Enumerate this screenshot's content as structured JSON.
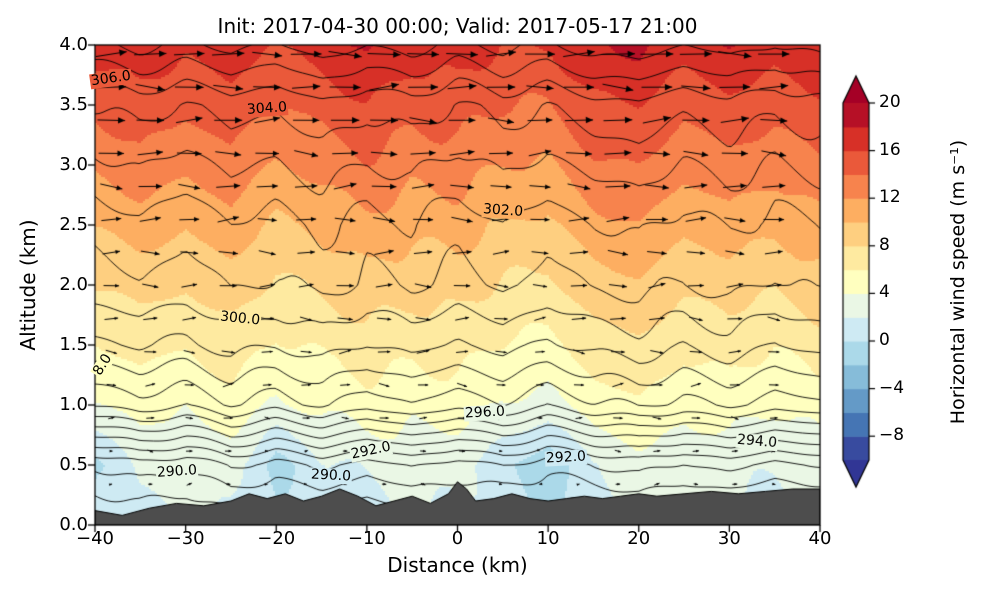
{
  "chart_data": {
    "type": "heatmap",
    "subtype": "vertical cross-section: filled wind-speed contours, potential-temperature contour lines, wind vectors, terrain silhouette",
    "title": "Init: 2017-04-30 00:00; Valid: 2017-05-17 21:00",
    "xlabel": "Distance (km)",
    "ylabel": "Altitude (km)",
    "xlim": [
      -40,
      40
    ],
    "ylim": [
      0.0,
      4.0
    ],
    "x_ticks": {
      "values": [
        -40,
        -30,
        -20,
        -10,
        0,
        10,
        20,
        30,
        40
      ],
      "labels": [
        "−40",
        "−30",
        "−20",
        "−10",
        "0",
        "10",
        "20",
        "30",
        "40"
      ]
    },
    "y_ticks": {
      "values": [
        0,
        0.5,
        1,
        1.5,
        2,
        2.5,
        3,
        3.5,
        4
      ],
      "labels": [
        "0.0",
        "0.5",
        "1.0",
        "1.5",
        "2.0",
        "2.5",
        "3.0",
        "3.5",
        "4.0"
      ]
    },
    "grid_x": [
      -40,
      -35,
      -30,
      -25,
      -20,
      -15,
      -10,
      -5,
      0,
      5,
      10,
      15,
      20,
      25,
      30,
      35,
      40
    ],
    "grid_z": [
      0,
      0.5,
      1,
      1.5,
      2,
      2.5,
      3,
      3.5,
      4
    ],
    "wind_speed_grid": [
      [
        1.8,
        1.2,
        2.0,
        1.5,
        0.5,
        1.5,
        1.0,
        1.8,
        1.2,
        2.0,
        -0.2,
        1.4,
        2.0,
        1.6,
        1.8,
        1.3,
        1.9
      ],
      [
        -0.5,
        2.8,
        3.2,
        2.5,
        -0.8,
        1.8,
        2.6,
        3.0,
        2.2,
        0.8,
        -1.4,
        2.0,
        3.2,
        2.6,
        3.0,
        2.4,
        2.8
      ],
      [
        4.2,
        4.8,
        4.0,
        5.0,
        3.8,
        4.6,
        5.2,
        4.4,
        4.8,
        4.0,
        3.6,
        5.0,
        5.5,
        4.5,
        5.1,
        4.3,
        4.9
      ],
      [
        6.2,
        6.8,
        6.0,
        7.0,
        5.8,
        6.6,
        7.2,
        6.4,
        6.8,
        6.0,
        5.6,
        7.0,
        7.5,
        6.5,
        7.1,
        6.3,
        6.9
      ],
      [
        8.2,
        8.8,
        8.0,
        9.0,
        7.8,
        8.6,
        9.2,
        8.4,
        8.8,
        8.0,
        7.6,
        9.0,
        9.5,
        8.5,
        9.1,
        8.3,
        8.9
      ],
      [
        10.4,
        11.0,
        10.0,
        11.2,
        9.8,
        10.6,
        11.4,
        10.4,
        11.0,
        10.0,
        9.6,
        11.2,
        11.8,
        10.6,
        11.4,
        10.4,
        11.2
      ],
      [
        12.6,
        13.2,
        12.2,
        13.4,
        12.0,
        12.8,
        13.6,
        12.6,
        13.2,
        12.2,
        11.8,
        13.4,
        14.0,
        12.8,
        13.6,
        12.6,
        13.4
      ],
      [
        14.6,
        15.2,
        14.2,
        15.4,
        14.0,
        14.8,
        15.6,
        14.6,
        15.2,
        14.2,
        13.8,
        15.4,
        16.0,
        14.8,
        15.6,
        14.6,
        15.4
      ],
      [
        16.6,
        17.1,
        16.2,
        17.5,
        16.0,
        17.0,
        18.3,
        16.8,
        17.4,
        16.2,
        15.8,
        17.6,
        18.6,
        17.0,
        18.2,
        16.6,
        17.4
      ]
    ],
    "theta_grid": [
      [
        287.8,
        288.1,
        287.7,
        288.2,
        287.9,
        288.3,
        287.8,
        288.2,
        288.4,
        287.9,
        288.2,
        288.0,
        288.3,
        288.0,
        287.7,
        288.2,
        287.9
      ],
      [
        290.1,
        290.8,
        290.2,
        291.1,
        290.4,
        291.3,
        290.6,
        291.2,
        290.4,
        291.0,
        290.3,
        291.1,
        291.5,
        290.8,
        291.3,
        290.6,
        291.2
      ],
      [
        296.1,
        296.7,
        296.2,
        296.9,
        296.3,
        297.1,
        296.5,
        297.0,
        296.3,
        296.8,
        296.1,
        296.9,
        297.2,
        296.6,
        297.1,
        296.4,
        296.9
      ],
      [
        298.7,
        299.2,
        298.8,
        299.4,
        298.9,
        299.5,
        299.0,
        299.5,
        298.8,
        299.3,
        298.7,
        299.4,
        299.7,
        299.1,
        299.5,
        298.9,
        299.4
      ],
      [
        300.5,
        301.0,
        300.6,
        301.2,
        300.7,
        301.3,
        300.8,
        301.3,
        300.6,
        301.1,
        300.5,
        301.2,
        301.5,
        300.9,
        301.3,
        300.7,
        301.2
      ],
      [
        301.3,
        301.8,
        301.4,
        302.0,
        301.5,
        302.1,
        301.6,
        302.1,
        301.4,
        301.9,
        301.3,
        302.0,
        302.3,
        301.7,
        302.1,
        301.5,
        302.0
      ],
      [
        302.6,
        303.1,
        302.7,
        303.3,
        302.8,
        303.4,
        302.9,
        303.4,
        302.7,
        303.2,
        302.6,
        303.3,
        303.6,
        303.0,
        303.4,
        302.8,
        303.3
      ],
      [
        303.9,
        304.4,
        304.0,
        304.6,
        304.1,
        304.7,
        304.2,
        304.7,
        304.0,
        304.5,
        303.9,
        304.6,
        304.9,
        304.3,
        304.7,
        304.1,
        304.6
      ],
      [
        306.7,
        307.2,
        306.8,
        307.4,
        306.9,
        307.5,
        307.0,
        307.5,
        306.8,
        307.3,
        306.7,
        307.4,
        307.7,
        307.1,
        307.5,
        306.9,
        307.4
      ]
    ],
    "theta_contour_interval_K": 1,
    "theta_label_interval_K": 2,
    "contour_labels": [
      {
        "text": "306.0",
        "x": -38.2,
        "z": 3.72,
        "rot": -8
      },
      {
        "text": "304.0",
        "x": -21,
        "z": 3.47,
        "rot": -4
      },
      {
        "text": "302.0",
        "x": 5,
        "z": 2.62,
        "rot": 4
      },
      {
        "text": "300.0",
        "x": -24,
        "z": 1.72,
        "rot": 6
      },
      {
        "text": "8.0",
        "x": -39.1,
        "z": 1.33,
        "rot": -58
      },
      {
        "text": "296.0",
        "x": 3,
        "z": 0.93,
        "rot": -3
      },
      {
        "text": "292.0",
        "x": -9.5,
        "z": 0.62,
        "rot": -12
      },
      {
        "text": "290.0",
        "x": -31,
        "z": 0.44,
        "rot": -4
      },
      {
        "text": "290.0",
        "x": -14,
        "z": 0.41,
        "rot": 3
      },
      {
        "text": "292.0",
        "x": 12,
        "z": 0.56,
        "rot": -3
      },
      {
        "text": "294.0",
        "x": 33,
        "z": 0.69,
        "rot": 5
      }
    ],
    "terrain_profile": {
      "x": [
        -40,
        -37,
        -34,
        -31,
        -28,
        -25,
        -23,
        -21,
        -19,
        -17,
        -15,
        -13,
        -11,
        -9,
        -7,
        -5,
        -3,
        -1,
        0,
        1,
        2,
        4,
        6,
        8,
        10,
        12,
        14,
        16,
        18,
        20,
        22,
        25,
        28,
        31,
        34,
        37,
        40
      ],
      "height_km": [
        0.12,
        0.08,
        0.14,
        0.18,
        0.16,
        0.2,
        0.26,
        0.22,
        0.26,
        0.2,
        0.24,
        0.3,
        0.24,
        0.16,
        0.2,
        0.24,
        0.18,
        0.26,
        0.36,
        0.3,
        0.2,
        0.22,
        0.26,
        0.22,
        0.2,
        0.22,
        0.24,
        0.22,
        0.24,
        0.26,
        0.24,
        0.26,
        0.28,
        0.26,
        0.28,
        0.3,
        0.3
      ]
    },
    "wind_vectors": {
      "style": "quiver arrows",
      "direction": "predominantly left-to-right, strengthening with altitude"
    },
    "colorbar": {
      "label": "Horizontal wind speed (m s⁻¹)",
      "range": [
        -10,
        20
      ],
      "band_step": 2,
      "extend": "both",
      "ticks": {
        "values": [
          20,
          16,
          12,
          8,
          4,
          0,
          -4,
          -8
        ],
        "labels": [
          "20",
          "16",
          "12",
          "8",
          "4",
          "0",
          "−4",
          "−8"
        ]
      },
      "colormap_anchors": [
        "#313695",
        "#4575b4",
        "#74add1",
        "#abd9e9",
        "#e0f3f8",
        "#ffffbf",
        "#fee090",
        "#fdae61",
        "#f46d43",
        "#d73027",
        "#a50026"
      ]
    },
    "colors": {
      "terrain": "#4d4d4d",
      "contour_lines": "#000000",
      "vectors": "#000000",
      "frame": "#000000",
      "background": "#ffffff"
    }
  }
}
